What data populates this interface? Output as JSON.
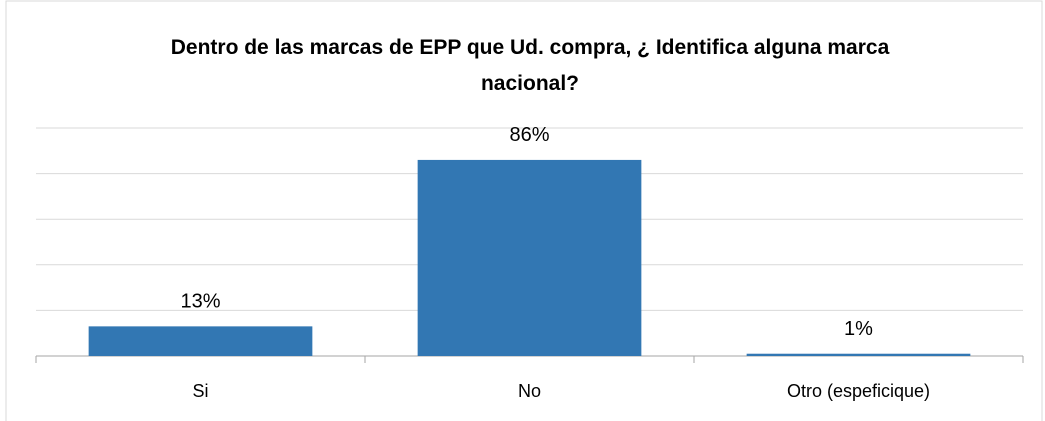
{
  "chart_data": {
    "type": "bar",
    "title": "Dentro de las marcas de EPP que Ud. compra,  ¿ Identifica alguna marca nacional?",
    "categories": [
      "Si",
      "No",
      "Otro (espeficique)"
    ],
    "values": [
      13,
      86,
      1
    ],
    "value_labels": [
      "13%",
      "86%",
      "1%"
    ],
    "color": "#3277b3",
    "ylim": [
      0,
      100
    ],
    "yticks": [
      0,
      20,
      40,
      60,
      80,
      100
    ],
    "grid": true
  }
}
